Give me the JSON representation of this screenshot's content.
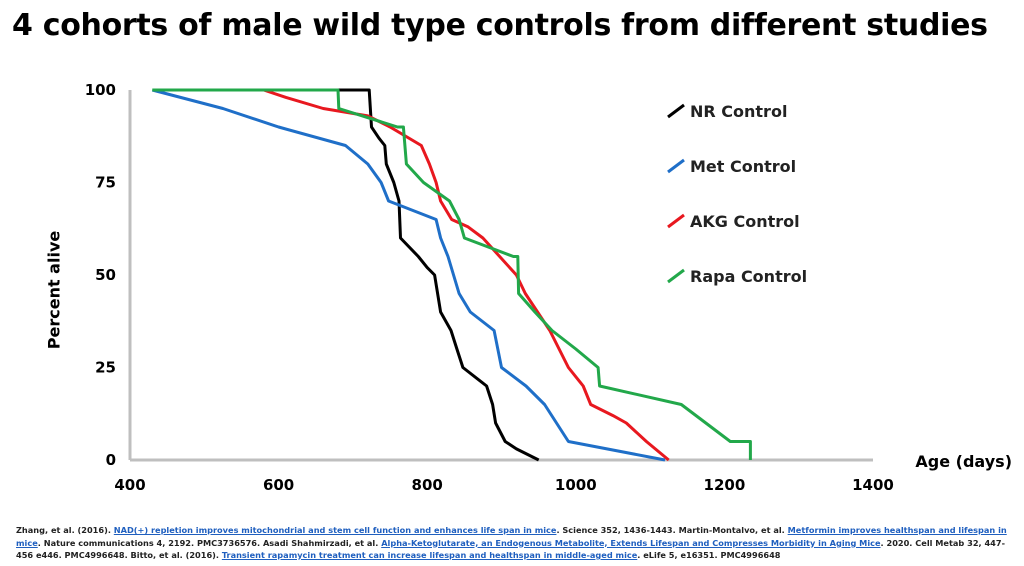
{
  "title": "4 cohorts of male wild type controls from different studies",
  "chart_data": {
    "type": "line",
    "title": "4 cohorts of male wild type controls from different studies",
    "xlabel": "Age (days)",
    "ylabel": "Percent alive",
    "xlim": [
      400,
      1400
    ],
    "ylim": [
      0,
      100
    ],
    "xticks": [
      400,
      600,
      800,
      1000,
      1200,
      1400
    ],
    "yticks": [
      0,
      25,
      50,
      75,
      100
    ],
    "grid": false,
    "legend_position": "right",
    "series": [
      {
        "name": "NR Control",
        "color": "#000000",
        "points": [
          [
            680,
            100
          ],
          [
            722,
            100
          ],
          [
            725,
            90
          ],
          [
            735,
            87
          ],
          [
            743,
            85
          ],
          [
            745,
            80
          ],
          [
            755,
            75
          ],
          [
            762,
            70
          ],
          [
            764,
            60
          ],
          [
            788,
            55
          ],
          [
            800,
            52
          ],
          [
            810,
            50
          ],
          [
            818,
            40
          ],
          [
            832,
            35
          ],
          [
            840,
            30
          ],
          [
            848,
            25
          ],
          [
            880,
            20
          ],
          [
            888,
            15
          ],
          [
            892,
            10
          ],
          [
            905,
            5
          ],
          [
            920,
            3
          ],
          [
            950,
            0
          ]
        ]
      },
      {
        "name": "Met Control",
        "color": "#1f6fc8",
        "points": [
          [
            430,
            100
          ],
          [
            525,
            95
          ],
          [
            600,
            90
          ],
          [
            690,
            85
          ],
          [
            720,
            80
          ],
          [
            738,
            75
          ],
          [
            748,
            70
          ],
          [
            812,
            65
          ],
          [
            818,
            60
          ],
          [
            828,
            55
          ],
          [
            843,
            45
          ],
          [
            858,
            40
          ],
          [
            890,
            35
          ],
          [
            900,
            25
          ],
          [
            933,
            20
          ],
          [
            958,
            15
          ],
          [
            990,
            5
          ],
          [
            1120,
            0
          ]
        ]
      },
      {
        "name": "AKG Control",
        "color": "#e8181f",
        "points": [
          [
            580,
            100
          ],
          [
            610,
            98
          ],
          [
            660,
            95
          ],
          [
            720,
            93
          ],
          [
            750,
            90
          ],
          [
            792,
            85
          ],
          [
            803,
            80
          ],
          [
            812,
            75
          ],
          [
            818,
            70
          ],
          [
            833,
            65
          ],
          [
            855,
            63
          ],
          [
            875,
            60
          ],
          [
            920,
            50
          ],
          [
            932,
            45
          ],
          [
            965,
            35
          ],
          [
            990,
            25
          ],
          [
            1010,
            20
          ],
          [
            1020,
            15
          ],
          [
            1050,
            12
          ],
          [
            1068,
            10
          ],
          [
            1095,
            5
          ],
          [
            1125,
            0
          ]
        ]
      },
      {
        "name": "Rapa Control",
        "color": "#22a84a",
        "points": [
          [
            430,
            100
          ],
          [
            680,
            100
          ],
          [
            681,
            95
          ],
          [
            760,
            90
          ],
          [
            768,
            90
          ],
          [
            772,
            80
          ],
          [
            795,
            75
          ],
          [
            830,
            70
          ],
          [
            843,
            65
          ],
          [
            850,
            60
          ],
          [
            916,
            55
          ],
          [
            922,
            55
          ],
          [
            923,
            45
          ],
          [
            945,
            40
          ],
          [
            968,
            35
          ],
          [
            1000,
            30
          ],
          [
            1030,
            25
          ],
          [
            1032,
            20
          ],
          [
            1142,
            15
          ],
          [
            1175,
            10
          ],
          [
            1208,
            5
          ],
          [
            1235,
            5
          ],
          [
            1235,
            0
          ]
        ]
      }
    ]
  },
  "references": {
    "r1_text": "Zhang, et al. (2016). ",
    "r1_link": "NAD(+) repletion improves mitochondrial and stem cell function and enhances life span in mice",
    "r1_after": ". Science 352, 1436-1443. Martin-Montalvo, et al. ",
    "r2_link": "Metformin improves healthspan and lifespan in mice",
    "r2_after": ". Nature communications 4, 2192. PMC3736576. Asadi Shahmirzadi, et al. ",
    "r3_link": "Alpha-Ketoglutarate, an Endogenous Metabolite, Extends Lifespan and Compresses Morbidity in Aging Mice",
    "r3_after": ". 2020. Cell Metab 32, 447-456 e446. PMC4996648. Bitto, et al. (2016). ",
    "r4_link": "Transient rapamycin treatment can increase lifespan and healthspan in middle-aged mice",
    "r4_after": ". eLife 5, e16351. PMC4996648"
  }
}
